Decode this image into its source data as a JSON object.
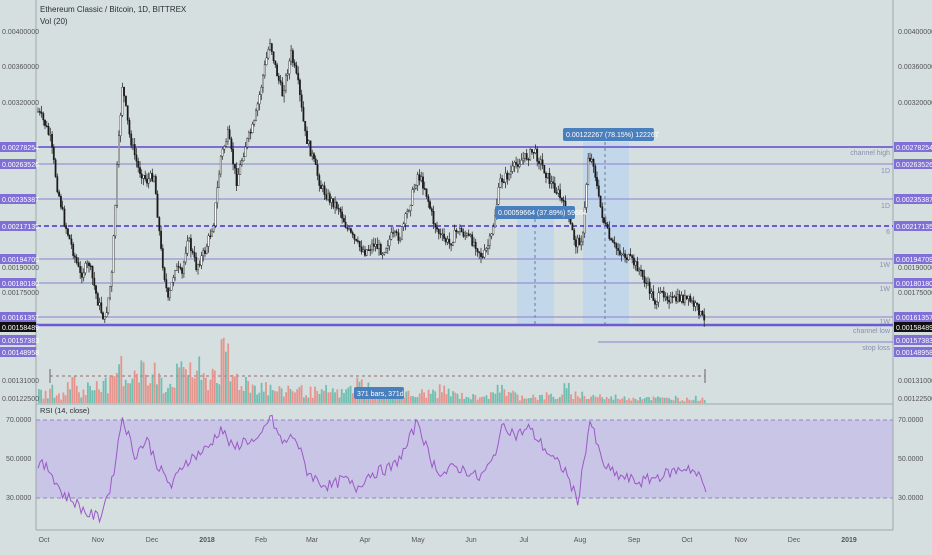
{
  "header": {
    "symbol": "Ethereum Classic / Bitcoin, 1D, BITTREX",
    "vol_label": "Vol (20)"
  },
  "rsi_label": "RSI (14, close)",
  "colors": {
    "bg": "#d5dfe0",
    "level_line": "#7d6fd0",
    "price_badge": "#7f6fd6",
    "current_badge": "#111111",
    "candle": "#1b1b1b",
    "vol_up": "#5fb9a8",
    "vol_down": "#e9877f",
    "rsi_line": "#9b59c7",
    "rsi_band": "#c7c1e6",
    "range_box": "#bcd4ee",
    "tooltip": "#4a7fbd"
  },
  "price_axis_ticks": [
    "0.00400000",
    "0.00360000",
    "0.00320000",
    "0.00190000",
    "0.00175000",
    "0.00131000",
    "0.00122500"
  ],
  "rsi_axis_ticks": [
    "70.0000",
    "50.0000",
    "30.0000"
  ],
  "level_badges": [
    "0.00278254",
    "0.00263526",
    "0.00235387",
    "0.00217135",
    "0.00194709",
    "0.00180180",
    "0.00161357",
    "0.00158489",
    "0.00157383",
    "0.00148958"
  ],
  "level_labels": [
    "channel high",
    "1D",
    "1D",
    "6",
    "1W",
    "1W",
    "1W",
    "channel low",
    "stop loss"
  ],
  "measures": [
    {
      "text": "0.00059664 (37.89%) 59664"
    },
    {
      "text": "0.00122267 (78.15%) 122267"
    }
  ],
  "bars_label": "371 bars, 371d",
  "time_axis": [
    "Oct",
    "Nov",
    "Dec",
    "2018",
    "Feb",
    "Mar",
    "Apr",
    "May",
    "Jun",
    "Jul",
    "Aug",
    "Sep",
    "Oct",
    "Nov",
    "Dec",
    "2019"
  ],
  "chart_data": {
    "type": "candlestick",
    "title": "Ethereum Classic / Bitcoin, 1D, BITTREX",
    "price_scale_ticks": [
      0.004,
      0.0036,
      0.0032,
      0.0019,
      0.00175,
      0.00131,
      0.001225
    ],
    "horizontal_levels": [
      {
        "value": 0.00278254,
        "label": "channel high"
      },
      {
        "value": 0.00263526,
        "label": "1D"
      },
      {
        "value": 0.00235387,
        "label": "1D"
      },
      {
        "value": 0.00217135,
        "label": "6"
      },
      {
        "value": 0.00194709,
        "label": "1W"
      },
      {
        "value": 0.0018018,
        "label": "1W"
      },
      {
        "value": 0.00161357,
        "label": "1W"
      },
      {
        "value": 0.00158489,
        "label": "channel low"
      },
      {
        "value": 0.00148958,
        "label": "stop loss"
      }
    ],
    "current_price": 0.00158489,
    "price_series": [
      {
        "t": "2017-09-26",
        "v": 0.00312
      },
      {
        "t": "2017-09-30",
        "v": 0.003
      },
      {
        "t": "2017-10-03",
        "v": 0.00286
      },
      {
        "t": "2017-10-07",
        "v": 0.00245
      },
      {
        "t": "2017-10-11",
        "v": 0.0022
      },
      {
        "t": "2017-10-16",
        "v": 0.002
      },
      {
        "t": "2017-10-20",
        "v": 0.00185
      },
      {
        "t": "2017-10-25",
        "v": 0.00192
      },
      {
        "t": "2017-10-30",
        "v": 0.0017
      },
      {
        "t": "2017-11-03",
        "v": 0.0016
      },
      {
        "t": "2017-11-07",
        "v": 0.00185
      },
      {
        "t": "2017-11-10",
        "v": 0.0026
      },
      {
        "t": "2017-11-13",
        "v": 0.0034
      },
      {
        "t": "2017-11-17",
        "v": 0.0029
      },
      {
        "t": "2017-11-22",
        "v": 0.0026
      },
      {
        "t": "2017-11-27",
        "v": 0.0025
      },
      {
        "t": "2017-12-01",
        "v": 0.00255
      },
      {
        "t": "2017-12-05",
        "v": 0.002
      },
      {
        "t": "2017-12-09",
        "v": 0.0017
      },
      {
        "t": "2017-12-13",
        "v": 0.0019
      },
      {
        "t": "2017-12-17",
        "v": 0.00185
      },
      {
        "t": "2017-12-20",
        "v": 0.0021
      },
      {
        "t": "2017-12-25",
        "v": 0.0019
      },
      {
        "t": "2017-12-30",
        "v": 0.002
      },
      {
        "t": "2018-01-04",
        "v": 0.0022
      },
      {
        "t": "2018-01-08",
        "v": 0.0027
      },
      {
        "t": "2018-01-12",
        "v": 0.0029
      },
      {
        "t": "2018-01-17",
        "v": 0.0025
      },
      {
        "t": "2018-01-22",
        "v": 0.0028
      },
      {
        "t": "2018-01-27",
        "v": 0.003
      },
      {
        "t": "2018-02-01",
        "v": 0.0035
      },
      {
        "t": "2018-02-05",
        "v": 0.0039
      },
      {
        "t": "2018-02-08",
        "v": 0.0036
      },
      {
        "t": "2018-02-12",
        "v": 0.0033
      },
      {
        "t": "2018-02-17",
        "v": 0.00375
      },
      {
        "t": "2018-02-21",
        "v": 0.0034
      },
      {
        "t": "2018-02-25",
        "v": 0.0029
      },
      {
        "t": "2018-03-01",
        "v": 0.0027
      },
      {
        "t": "2018-03-06",
        "v": 0.00245
      },
      {
        "t": "2018-03-11",
        "v": 0.00235
      },
      {
        "t": "2018-03-16",
        "v": 0.0023
      },
      {
        "t": "2018-03-21",
        "v": 0.00215
      },
      {
        "t": "2018-03-26",
        "v": 0.00205
      },
      {
        "t": "2018-03-31",
        "v": 0.002
      },
      {
        "t": "2018-04-05",
        "v": 0.00205
      },
      {
        "t": "2018-04-10",
        "v": 0.002
      },
      {
        "t": "2018-04-15",
        "v": 0.0021
      },
      {
        "t": "2018-04-20",
        "v": 0.0021
      },
      {
        "t": "2018-04-25",
        "v": 0.0023
      },
      {
        "t": "2018-04-30",
        "v": 0.00255
      },
      {
        "t": "2018-05-04",
        "v": 0.00245
      },
      {
        "t": "2018-05-09",
        "v": 0.0022
      },
      {
        "t": "2018-05-13",
        "v": 0.0021
      },
      {
        "t": "2018-05-18",
        "v": 0.00205
      },
      {
        "t": "2018-05-23",
        "v": 0.00215
      },
      {
        "t": "2018-05-28",
        "v": 0.0021
      },
      {
        "t": "2018-06-02",
        "v": 0.00205
      },
      {
        "t": "2018-06-06",
        "v": 0.00195
      },
      {
        "t": "2018-06-11",
        "v": 0.0021
      },
      {
        "t": "2018-06-16",
        "v": 0.0025
      },
      {
        "t": "2018-06-21",
        "v": 0.00255
      },
      {
        "t": "2018-06-26",
        "v": 0.00265
      },
      {
        "t": "2018-07-01",
        "v": 0.0027
      },
      {
        "t": "2018-07-05",
        "v": 0.00275
      },
      {
        "t": "2018-07-09",
        "v": 0.00265
      },
      {
        "t": "2018-07-14",
        "v": 0.0025
      },
      {
        "t": "2018-07-19",
        "v": 0.0024
      },
      {
        "t": "2018-07-24",
        "v": 0.00225
      },
      {
        "t": "2018-07-29",
        "v": 0.00205
      },
      {
        "t": "2018-08-02",
        "v": 0.0021
      },
      {
        "t": "2018-08-05",
        "v": 0.0027
      },
      {
        "t": "2018-08-08",
        "v": 0.00265
      },
      {
        "t": "2018-08-11",
        "v": 0.00235
      },
      {
        "t": "2018-08-14",
        "v": 0.0022
      },
      {
        "t": "2018-08-18",
        "v": 0.00205
      },
      {
        "t": "2018-08-23",
        "v": 0.002
      },
      {
        "t": "2018-08-28",
        "v": 0.00195
      },
      {
        "t": "2018-09-02",
        "v": 0.0019
      },
      {
        "t": "2018-09-07",
        "v": 0.0018
      },
      {
        "t": "2018-09-12",
        "v": 0.0017
      },
      {
        "t": "2018-09-17",
        "v": 0.00175
      },
      {
        "t": "2018-09-22",
        "v": 0.0017
      },
      {
        "t": "2018-09-27",
        "v": 0.00172
      },
      {
        "t": "2018-10-02",
        "v": 0.0017
      },
      {
        "t": "2018-10-07",
        "v": 0.00165
      },
      {
        "t": "2018-10-11",
        "v": 0.00158
      }
    ],
    "rsi_series": [
      {
        "t": "2017-09-26",
        "v": 48
      },
      {
        "t": "2017-10-03",
        "v": 44
      },
      {
        "t": "2017-10-10",
        "v": 32
      },
      {
        "t": "2017-10-17",
        "v": 28
      },
      {
        "t": "2017-10-24",
        "v": 22
      },
      {
        "t": "2017-10-31",
        "v": 20
      },
      {
        "t": "2017-11-07",
        "v": 38
      },
      {
        "t": "2017-11-13",
        "v": 72
      },
      {
        "t": "2017-11-20",
        "v": 52
      },
      {
        "t": "2017-11-27",
        "v": 60
      },
      {
        "t": "2017-12-04",
        "v": 45
      },
      {
        "t": "2017-12-11",
        "v": 36
      },
      {
        "t": "2017-12-18",
        "v": 48
      },
      {
        "t": "2017-12-25",
        "v": 52
      },
      {
        "t": "2018-01-01",
        "v": 56
      },
      {
        "t": "2018-01-08",
        "v": 66
      },
      {
        "t": "2018-01-15",
        "v": 55
      },
      {
        "t": "2018-01-22",
        "v": 60
      },
      {
        "t": "2018-01-29",
        "v": 58
      },
      {
        "t": "2018-02-05",
        "v": 72
      },
      {
        "t": "2018-02-12",
        "v": 58
      },
      {
        "t": "2018-02-19",
        "v": 62
      },
      {
        "t": "2018-02-26",
        "v": 44
      },
      {
        "t": "2018-03-05",
        "v": 38
      },
      {
        "t": "2018-03-12",
        "v": 36
      },
      {
        "t": "2018-03-19",
        "v": 40
      },
      {
        "t": "2018-03-26",
        "v": 35
      },
      {
        "t": "2018-04-02",
        "v": 42
      },
      {
        "t": "2018-04-09",
        "v": 44
      },
      {
        "t": "2018-04-16",
        "v": 46
      },
      {
        "t": "2018-04-23",
        "v": 55
      },
      {
        "t": "2018-04-30",
        "v": 70
      },
      {
        "t": "2018-05-07",
        "v": 50
      },
      {
        "t": "2018-05-14",
        "v": 42
      },
      {
        "t": "2018-05-21",
        "v": 46
      },
      {
        "t": "2018-05-28",
        "v": 44
      },
      {
        "t": "2018-06-04",
        "v": 40
      },
      {
        "t": "2018-06-11",
        "v": 48
      },
      {
        "t": "2018-06-18",
        "v": 68
      },
      {
        "t": "2018-06-25",
        "v": 62
      },
      {
        "t": "2018-07-02",
        "v": 66
      },
      {
        "t": "2018-07-09",
        "v": 58
      },
      {
        "t": "2018-07-16",
        "v": 50
      },
      {
        "t": "2018-07-23",
        "v": 44
      },
      {
        "t": "2018-07-30",
        "v": 28
      },
      {
        "t": "2018-08-06",
        "v": 70
      },
      {
        "t": "2018-08-13",
        "v": 48
      },
      {
        "t": "2018-08-20",
        "v": 42
      },
      {
        "t": "2018-08-27",
        "v": 40
      },
      {
        "t": "2018-09-03",
        "v": 38
      },
      {
        "t": "2018-09-10",
        "v": 40
      },
      {
        "t": "2018-09-17",
        "v": 42
      },
      {
        "t": "2018-09-24",
        "v": 44
      },
      {
        "t": "2018-10-01",
        "v": 46
      },
      {
        "t": "2018-10-08",
        "v": 40
      },
      {
        "t": "2018-10-11",
        "v": 33
      }
    ],
    "volume_relative": [
      0.15,
      0.2,
      0.12,
      0.35,
      0.18,
      0.25,
      0.4,
      0.3,
      0.55,
      0.45,
      0.6,
      0.35,
      0.5,
      0.3,
      0.45,
      0.62,
      0.5,
      0.38,
      0.55,
      0.7,
      0.42,
      0.35,
      0.28,
      0.3,
      0.22,
      0.18,
      0.25,
      0.2,
      0.18,
      0.15,
      0.2,
      0.16,
      0.22,
      0.3,
      0.25,
      0.2,
      0.15,
      0.18,
      0.14,
      0.12,
      0.16,
      0.18,
      0.2,
      0.14,
      0.12,
      0.1,
      0.15,
      0.12,
      0.3,
      0.15,
      0.1,
      0.12,
      0.1,
      0.12,
      0.1,
      0.22,
      0.14,
      0.1,
      0.12,
      0.08,
      0.1,
      0.08,
      0.09,
      0.1,
      0.08,
      0.07,
      0.09,
      0.06,
      0.08,
      0.07
    ]
  }
}
